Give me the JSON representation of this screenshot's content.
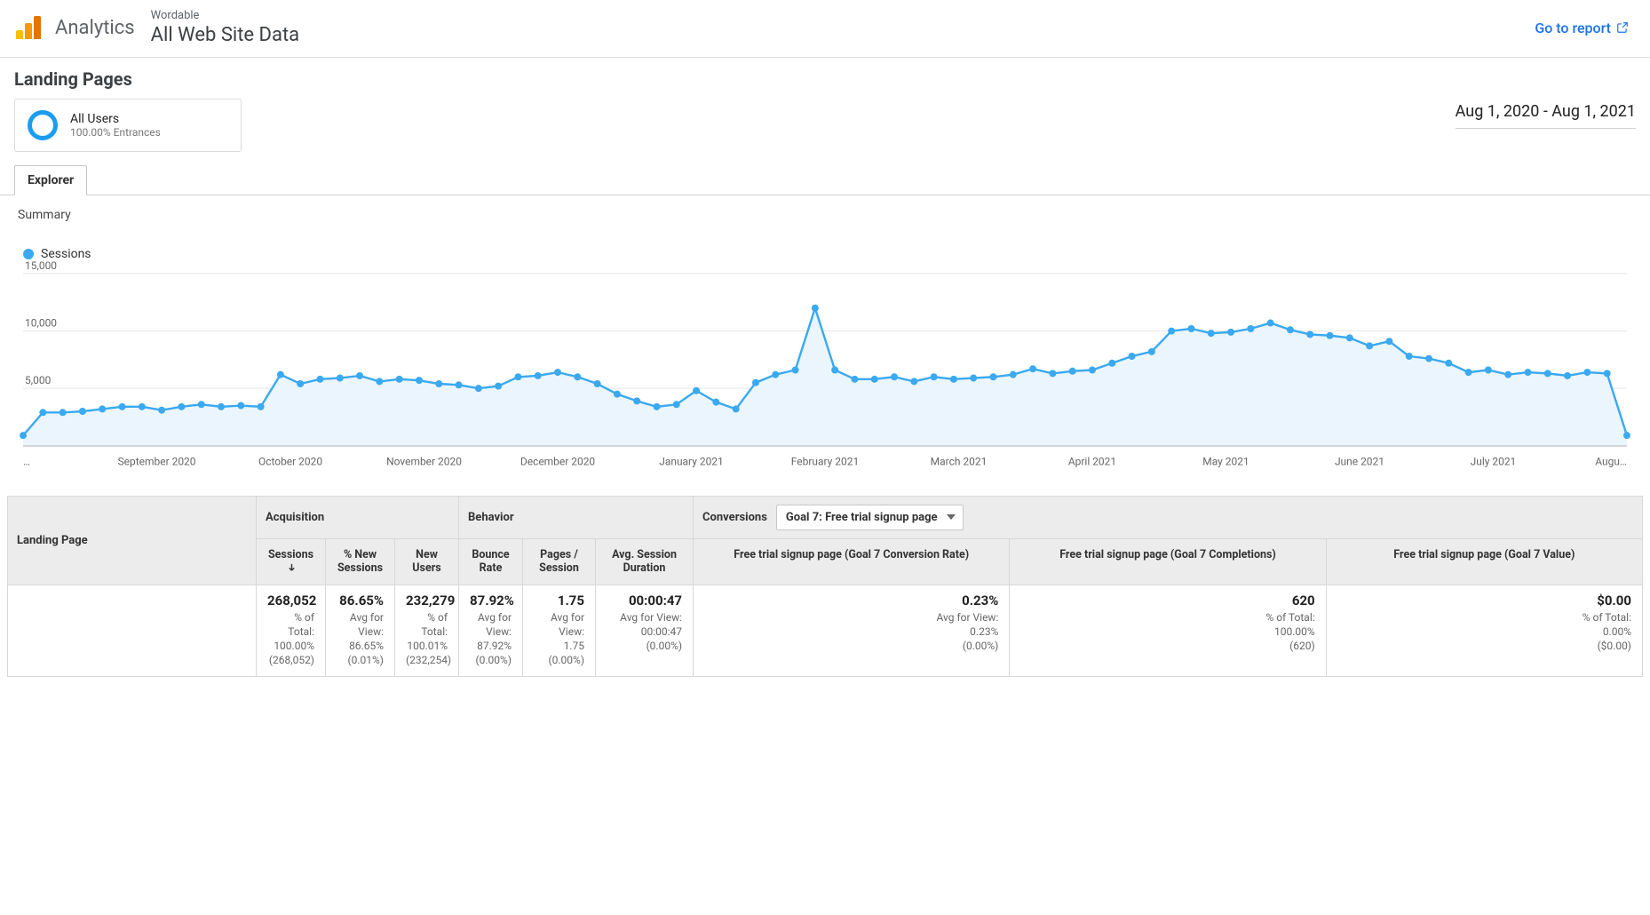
{
  "header": {
    "brand": "Analytics",
    "property": "Wordable",
    "view": "All Web Site Data",
    "report_link": "Go to report",
    "logo_colors": {
      "small": "#fbbc04",
      "mid": "#f29900",
      "tall": "#e37400"
    }
  },
  "page": {
    "title": "Landing Pages",
    "segment": {
      "title": "All Users",
      "subtitle": "100.00% Entrances",
      "ring_color": "#1a9cf0"
    },
    "date_range": "Aug 1, 2020 - Aug 1, 2021",
    "tab": "Explorer",
    "subheading": "Summary"
  },
  "chart": {
    "legend_label": "Sessions",
    "series_color": "#3aa9f0",
    "fill_color": "#eaf5fd",
    "grid_color": "#e6e6e6",
    "baseline_color": "#8a8a8a",
    "text_color": "#666666",
    "y": {
      "max": 15000,
      "ticks": [
        5000,
        10000,
        15000
      ],
      "labels": [
        "5,000",
        "10,000",
        "15,000"
      ]
    },
    "x_labels": [
      "…",
      "September 2020",
      "October 2020",
      "November 2020",
      "December 2020",
      "January 2021",
      "February 2021",
      "March 2021",
      "April 2021",
      "May 2021",
      "June 2021",
      "July 2021",
      "Augu…"
    ],
    "values": [
      900,
      2900,
      2900,
      3000,
      3200,
      3400,
      3400,
      3100,
      3400,
      3600,
      3400,
      3500,
      3400,
      6200,
      5400,
      5800,
      5900,
      6100,
      5600,
      5800,
      5700,
      5400,
      5300,
      5000,
      5200,
      6000,
      6100,
      6400,
      6000,
      5400,
      4500,
      3900,
      3400,
      3600,
      4800,
      3800,
      3200,
      5500,
      6200,
      6600,
      12000,
      6600,
      5800,
      5800,
      6000,
      5600,
      6000,
      5800,
      5900,
      6000,
      6200,
      6700,
      6300,
      6500,
      6600,
      7200,
      7800,
      8200,
      10000,
      10200,
      9800,
      9900,
      10200,
      10700,
      10100,
      9700,
      9600,
      9400,
      8700,
      9100,
      7800,
      7600,
      7200,
      6400,
      6600,
      6200,
      6400,
      6300,
      6100,
      6400,
      6300,
      900
    ],
    "marker_radius": 4,
    "line_width": 2.4
  },
  "table": {
    "row_header": "Landing Page",
    "groups": {
      "acq": "Acquisition",
      "beh": "Behavior",
      "conv": "Conversions"
    },
    "conv_select": "Goal 7: Free trial signup page",
    "columns": [
      {
        "key": "sessions",
        "label": "Sessions",
        "sorted": true
      },
      {
        "key": "pct_new",
        "label": "% New Sessions"
      },
      {
        "key": "new_users",
        "label": "New Users"
      },
      {
        "key": "bounce",
        "label": "Bounce Rate"
      },
      {
        "key": "pages",
        "label": "Pages / Session"
      },
      {
        "key": "avg_dur",
        "label": "Avg. Session Duration"
      },
      {
        "key": "g7_rate",
        "label": "Free trial signup page (Goal 7 Conversion Rate)"
      },
      {
        "key": "g7_comp",
        "label": "Free trial signup page (Goal 7 Completions)"
      },
      {
        "key": "g7_val",
        "label": "Free trial signup page (Goal 7 Value)"
      }
    ],
    "totals": {
      "sessions": {
        "big": "268,052",
        "l1": "% of Total:",
        "l2": "100.00%",
        "l3": "(268,052)"
      },
      "pct_new": {
        "big": "86.65%",
        "l1": "Avg for View:",
        "l2": "86.65%",
        "l3": "(0.01%)"
      },
      "new_users": {
        "big": "232,279",
        "l1": "% of",
        "l2": "Total:",
        "l3": "100.01%",
        "l4": "(232,254)"
      },
      "bounce": {
        "big": "87.92%",
        "l1": "Avg for",
        "l2": "View:",
        "l3": "87.92%",
        "l4": "(0.00%)"
      },
      "pages": {
        "big": "1.75",
        "l1": "Avg for",
        "l2": "View:",
        "l3": "1.75",
        "l4": "(0.00%)"
      },
      "avg_dur": {
        "big": "00:00:47",
        "l1": "Avg for View:",
        "l2": "00:00:47",
        "l3": "(0.00%)"
      },
      "g7_rate": {
        "big": "0.23%",
        "l1": "Avg for View:",
        "l2": "0.23%",
        "l3": "(0.00%)"
      },
      "g7_comp": {
        "big": "620",
        "l1": "% of Total:",
        "l2": "100.00%",
        "l3": "(620)"
      },
      "g7_val": {
        "big": "$0.00",
        "l1": "% of Total:",
        "l2": "0.00%",
        "l3": "($0.00)"
      }
    }
  }
}
